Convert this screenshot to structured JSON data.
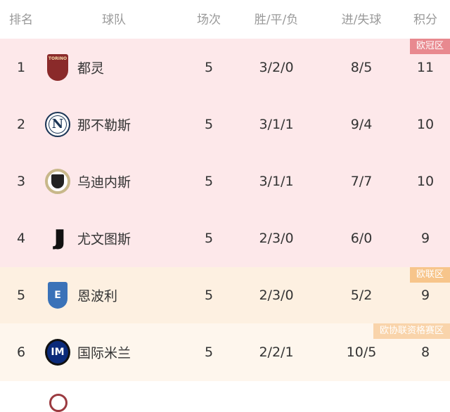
{
  "header": {
    "rank": "排名",
    "team": "球队",
    "played": "场次",
    "wdl": "胜/平/负",
    "goals": "进/失球",
    "points": "积分"
  },
  "zones": {
    "ucl": {
      "label": "欧冠区",
      "bg": "#fde8ea",
      "tag": "#e8898f"
    },
    "uel": {
      "label": "欧联区",
      "bg": "#fdf0e1",
      "tag": "#f7c58b"
    },
    "uecl": {
      "label": "欧协联资格赛区",
      "bg": "#fef6ed",
      "tag": "#f9d4ab"
    }
  },
  "rows": [
    {
      "rank": "1",
      "team": "都灵",
      "logo": "torino-crest",
      "logo_text": "TORINO",
      "played": "5",
      "wdl": "3/2/0",
      "goals": "8/5",
      "points": "11"
    },
    {
      "rank": "2",
      "team": "那不勒斯",
      "logo": "napoli-crest",
      "logo_text": "N",
      "played": "5",
      "wdl": "3/1/1",
      "goals": "9/4",
      "points": "10"
    },
    {
      "rank": "3",
      "team": "乌迪内斯",
      "logo": "udinese-crest",
      "played": "5",
      "wdl": "3/1/1",
      "goals": "7/7",
      "points": "10"
    },
    {
      "rank": "4",
      "team": "尤文图斯",
      "logo": "juventus-crest",
      "played": "5",
      "wdl": "2/3/0",
      "goals": "6/0",
      "points": "9"
    },
    {
      "rank": "5",
      "team": "恩波利",
      "logo": "empoli-crest",
      "played": "5",
      "wdl": "2/3/0",
      "goals": "5/2",
      "points": "9"
    },
    {
      "rank": "6",
      "team": "国际米兰",
      "logo": "inter-crest",
      "played": "5",
      "wdl": "2/2/1",
      "goals": "10/5",
      "points": "8"
    }
  ]
}
